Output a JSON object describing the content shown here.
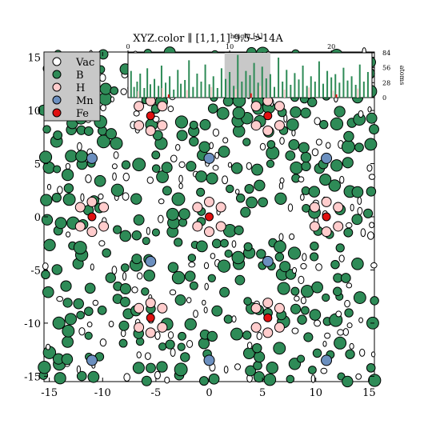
{
  "chart_data": [
    {
      "type": "scatter",
      "title": "XYZ.color ∥ [1,1,1] 9.5->14A",
      "xlim": [
        -15.5,
        15.5
      ],
      "ylim": [
        -15.5,
        15.5
      ],
      "x_ticks": [
        "-15",
        "-10",
        "-5",
        "0",
        "5",
        "10",
        "15"
      ],
      "y_ticks": [
        "-15",
        "-10",
        "-5",
        "0",
        "5",
        "10",
        "15"
      ],
      "grid": false,
      "legend_placement": "top-left",
      "legend": [
        {
          "name": "Vac",
          "color": "#ffffff"
        },
        {
          "name": "B",
          "color": "#2e8b57"
        },
        {
          "name": "H",
          "color": "#ffcccc"
        },
        {
          "name": "Mn",
          "color": "#6b8fbf"
        },
        {
          "name": "Fe",
          "color": "#e01010"
        }
      ],
      "series": [
        {
          "name": "Fe",
          "color": "#e01010",
          "x": [
            -5.5,
            5.5,
            -11,
            0,
            11,
            -5.5,
            5.5
          ],
          "y": [
            9.5,
            9.5,
            0,
            0,
            0,
            -9.5,
            -9.5
          ]
        },
        {
          "name": "Mn",
          "color": "#6b8fbf",
          "x": [
            -11,
            0,
            11,
            -5.5,
            5.5,
            -11,
            0,
            11
          ],
          "y": [
            5.5,
            5.5,
            5.5,
            -4.2,
            -4.2,
            -13.5,
            -13.5,
            -13.5
          ]
        }
      ]
    },
    {
      "type": "bar",
      "title": "",
      "xlabel": "height [A]",
      "ylabel": "atoms",
      "xlim": [
        0,
        24
      ],
      "ylim": [
        0,
        84
      ],
      "x_ticks": [
        "0",
        "10",
        "20"
      ],
      "y_ticks": [
        "84",
        "56",
        "28",
        "0"
      ],
      "highlight_range": [
        9.5,
        14
      ],
      "series": [
        {
          "name": "B",
          "color": "#2e8b57",
          "x": [
            0.3,
            0.6,
            0.9,
            1.2,
            1.6,
            1.9,
            2.2,
            2.6,
            3.0,
            3.3,
            3.7,
            4.1,
            4.5,
            4.9,
            5.2,
            5.6,
            6.0,
            6.4,
            6.8,
            7.2,
            7.6,
            8.0,
            8.4,
            8.8,
            9.2,
            9.6,
            10.0,
            10.4,
            10.8,
            11.2,
            11.6,
            12.0,
            12.4,
            12.8,
            13.2,
            13.6,
            14.0,
            14.4,
            14.8,
            15.2,
            15.6,
            16.0,
            16.4,
            16.8,
            17.2,
            17.6,
            18.0,
            18.4,
            18.8,
            19.2,
            19.6,
            20.0,
            20.4,
            20.8,
            21.2,
            21.6,
            22.0,
            22.4,
            22.8,
            23.2,
            23.6
          ],
          "values": [
            50,
            20,
            30,
            45,
            18,
            55,
            25,
            35,
            22,
            60,
            28,
            40,
            15,
            52,
            26,
            33,
            70,
            20,
            45,
            30,
            62,
            25,
            40,
            18,
            55,
            35,
            48,
            22,
            80,
            30,
            50,
            42,
            65,
            28,
            58,
            36,
            44,
            20,
            75,
            30,
            52,
            24,
            46,
            34,
            60,
            22,
            40,
            30,
            68,
            26,
            50,
            38,
            44,
            28,
            56,
            32,
            40,
            24,
            62,
            30,
            48
          ]
        },
        {
          "name": "H",
          "color": "#ffcccc",
          "x": [
            1.0,
            3.4,
            5.8,
            8.2,
            10.6,
            13.0,
            15.4,
            17.8,
            20.2,
            22.6
          ],
          "values": [
            12,
            18,
            14,
            20,
            16,
            22,
            15,
            19,
            13,
            17
          ]
        },
        {
          "name": "Fe",
          "color": "#e01010",
          "x": [
            4.0,
            12.1,
            20.5
          ],
          "values": [
            6,
            8,
            6
          ]
        }
      ]
    }
  ]
}
